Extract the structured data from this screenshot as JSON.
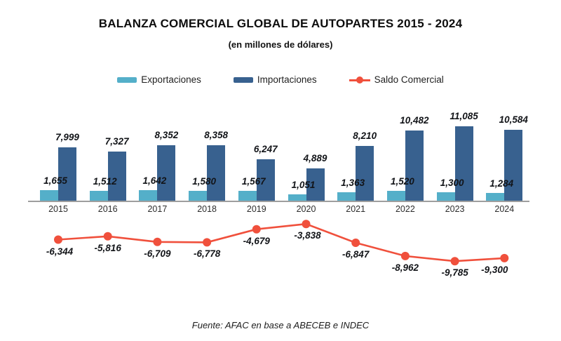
{
  "chart": {
    "title": "BALANZA COMERCIAL GLOBAL DE AUTOPARTES 2015 - 2024",
    "subtitle": "(en millones de dólares)",
    "source": "Fuente: AFAC en base a ABECEB e INDEC"
  },
  "chart_data": {
    "type": "bar",
    "title": "BALANZA COMERCIAL GLOBAL DE AUTOPARTES 2015 - 2024",
    "subtitle": "(en millones de dólares)",
    "categories": [
      "2015",
      "2016",
      "2017",
      "2018",
      "2019",
      "2020",
      "2021",
      "2022",
      "2023",
      "2024"
    ],
    "series": [
      {
        "name": "Exportaciones",
        "type": "bar",
        "color": "#54AFC9",
        "values": [
          1655,
          1512,
          1642,
          1580,
          1567,
          1051,
          1363,
          1520,
          1300,
          1284
        ],
        "labels": [
          "1,655",
          "1,512",
          "1,642",
          "1,580",
          "1,567",
          "1,051",
          "1,363",
          "1,520",
          "1,300",
          "1,284"
        ]
      },
      {
        "name": "Importaciones",
        "type": "bar",
        "color": "#38618F",
        "values": [
          7999,
          7327,
          8352,
          8358,
          6247,
          4889,
          8210,
          10482,
          11085,
          10584
        ],
        "labels": [
          "7,999",
          "7,327",
          "8,352",
          "8,358",
          "6,247",
          "4,889",
          "8,210",
          "10,482",
          "11,085",
          "10,584"
        ]
      },
      {
        "name": "Saldo Comercial",
        "type": "line",
        "color": "#F0503C",
        "values": [
          -6344,
          -5816,
          -6709,
          -6778,
          -4679,
          -3838,
          -6847,
          -8962,
          -9785,
          -9300
        ],
        "labels": [
          "-6,344",
          "-5,816",
          "-6,709",
          "-6,778",
          "-4,679",
          "-3,838",
          "-6,847",
          "-8,962",
          "-9,785",
          "-9,300"
        ]
      }
    ],
    "xlabel": "",
    "ylabel": "",
    "grid": false,
    "legend_position": "top",
    "source": "Fuente: AFAC en base a ABECEB e INDEC"
  }
}
